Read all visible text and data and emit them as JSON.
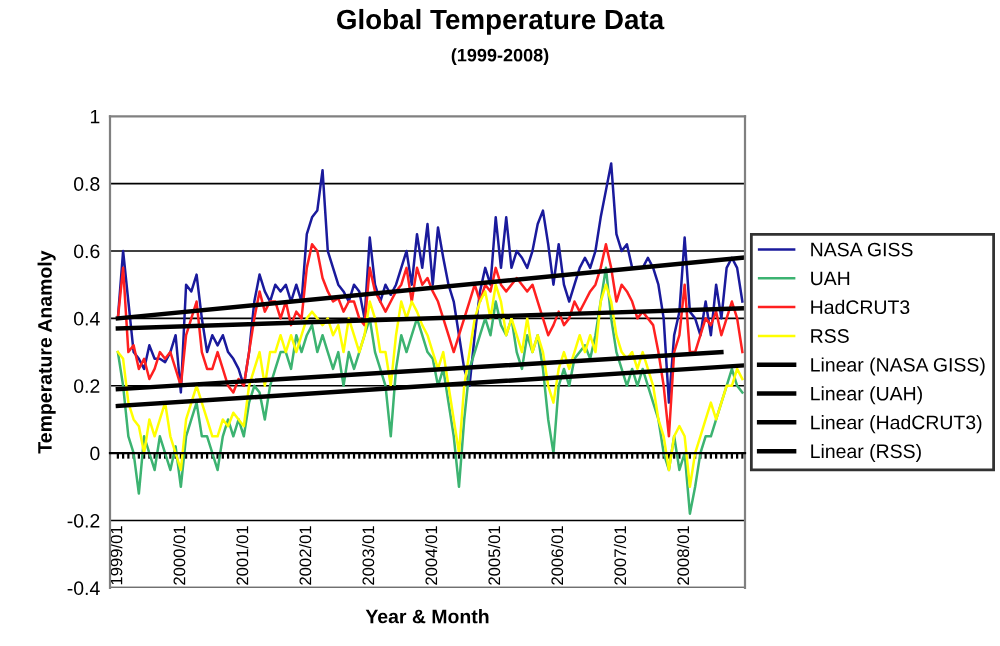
{
  "chart_data": {
    "type": "line",
    "title": "Global Temperature Data",
    "subtitle": "(1999-2008)",
    "xlabel": "Year & Month",
    "ylabel": "Temperature Anamoly",
    "categories": [
      "1999/01",
      null,
      null,
      null,
      null,
      null,
      null,
      null,
      null,
      null,
      null,
      null,
      "2000/01",
      null,
      null,
      null,
      null,
      null,
      null,
      null,
      null,
      null,
      null,
      null,
      "2001/01",
      null,
      null,
      null,
      null,
      null,
      null,
      null,
      null,
      null,
      null,
      null,
      "2002/01",
      null,
      null,
      null,
      null,
      null,
      null,
      null,
      null,
      null,
      null,
      null,
      "2003/01",
      null,
      null,
      null,
      null,
      null,
      null,
      null,
      null,
      null,
      null,
      null,
      "2004/01",
      null,
      null,
      null,
      null,
      null,
      null,
      null,
      null,
      null,
      null,
      null,
      "2005/01",
      null,
      null,
      null,
      null,
      null,
      null,
      null,
      null,
      null,
      null,
      null,
      "2006/01",
      null,
      null,
      null,
      null,
      null,
      null,
      null,
      null,
      null,
      null,
      null,
      "2007/01",
      null,
      null,
      null,
      null,
      null,
      null,
      null,
      null,
      null,
      null,
      null,
      "2008/01",
      null,
      null,
      null,
      null,
      null,
      null,
      null,
      null,
      null,
      null,
      null
    ],
    "series": [
      {
        "name": "NASA GISS",
        "color": "#1a1a9c",
        "values": [
          0.4,
          0.6,
          0.45,
          0.3,
          0.28,
          0.25,
          0.32,
          0.28,
          0.28,
          0.27,
          0.3,
          0.35,
          0.18,
          0.5,
          0.48,
          0.53,
          0.4,
          0.3,
          0.35,
          0.32,
          0.35,
          0.3,
          0.28,
          0.25,
          0.2,
          0.3,
          0.45,
          0.53,
          0.48,
          0.45,
          0.5,
          0.48,
          0.5,
          0.45,
          0.5,
          0.45,
          0.65,
          0.7,
          0.72,
          0.84,
          0.6,
          0.55,
          0.5,
          0.48,
          0.45,
          0.5,
          0.48,
          0.4,
          0.64,
          0.5,
          0.45,
          0.5,
          0.47,
          0.5,
          0.55,
          0.6,
          0.5,
          0.65,
          0.55,
          0.68,
          0.5,
          0.67,
          0.58,
          0.5,
          0.45,
          0.35,
          0.25,
          0.2,
          0.35,
          0.48,
          0.55,
          0.5,
          0.7,
          0.55,
          0.7,
          0.55,
          0.6,
          0.58,
          0.55,
          0.6,
          0.68,
          0.72,
          0.62,
          0.5,
          0.62,
          0.5,
          0.45,
          0.5,
          0.55,
          0.58,
          0.55,
          0.6,
          0.7,
          0.78,
          0.86,
          0.65,
          0.6,
          0.62,
          0.55,
          0.55,
          0.55,
          0.58,
          0.55,
          0.5,
          0.4,
          0.15,
          0.35,
          0.42,
          0.64,
          0.42,
          0.4,
          0.35,
          0.45,
          0.35,
          0.5,
          0.4,
          0.55,
          0.58,
          0.55,
          0.45
        ]
      },
      {
        "name": "UAH",
        "color": "#3cb371",
        "values": [
          0.3,
          0.2,
          0.05,
          0.0,
          -0.12,
          0.05,
          0.0,
          -0.05,
          0.05,
          0.0,
          -0.05,
          0.02,
          -0.1,
          0.05,
          0.1,
          0.15,
          0.05,
          0.05,
          0.0,
          -0.05,
          0.05,
          0.1,
          0.05,
          0.1,
          0.05,
          0.15,
          0.2,
          0.18,
          0.1,
          0.2,
          0.25,
          0.3,
          0.3,
          0.25,
          0.35,
          0.3,
          0.35,
          0.38,
          0.3,
          0.35,
          0.3,
          0.25,
          0.3,
          0.2,
          0.3,
          0.25,
          0.3,
          0.35,
          0.4,
          0.3,
          0.25,
          0.2,
          0.05,
          0.25,
          0.35,
          0.3,
          0.35,
          0.4,
          0.35,
          0.3,
          0.28,
          0.2,
          0.25,
          0.15,
          0.05,
          -0.1,
          0.1,
          0.25,
          0.3,
          0.35,
          0.4,
          0.35,
          0.45,
          0.38,
          0.35,
          0.4,
          0.3,
          0.25,
          0.35,
          0.3,
          0.35,
          0.25,
          0.1,
          0.0,
          0.2,
          0.25,
          0.2,
          0.28,
          0.3,
          0.32,
          0.28,
          0.35,
          0.45,
          0.55,
          0.4,
          0.3,
          0.25,
          0.2,
          0.25,
          0.2,
          0.25,
          0.2,
          0.15,
          0.1,
          0.0,
          -0.05,
          0.05,
          -0.05,
          0.0,
          -0.18,
          -0.1,
          0.0,
          0.05,
          0.05,
          0.1,
          0.15,
          0.2,
          0.25,
          0.2,
          0.18
        ]
      },
      {
        "name": "HadCRUT3",
        "color": "#ff2020",
        "values": [
          0.4,
          0.55,
          0.3,
          0.32,
          0.25,
          0.28,
          0.22,
          0.25,
          0.3,
          0.28,
          0.3,
          0.25,
          0.2,
          0.35,
          0.4,
          0.45,
          0.3,
          0.25,
          0.25,
          0.3,
          0.25,
          0.2,
          0.18,
          0.22,
          0.2,
          0.3,
          0.4,
          0.48,
          0.42,
          0.45,
          0.45,
          0.4,
          0.45,
          0.38,
          0.42,
          0.4,
          0.55,
          0.62,
          0.6,
          0.52,
          0.48,
          0.45,
          0.46,
          0.42,
          0.45,
          0.45,
          0.4,
          0.38,
          0.55,
          0.48,
          0.45,
          0.42,
          0.45,
          0.48,
          0.5,
          0.55,
          0.45,
          0.55,
          0.5,
          0.52,
          0.48,
          0.45,
          0.4,
          0.35,
          0.3,
          0.35,
          0.4,
          0.45,
          0.5,
          0.45,
          0.5,
          0.48,
          0.55,
          0.5,
          0.48,
          0.5,
          0.52,
          0.5,
          0.48,
          0.5,
          0.45,
          0.4,
          0.35,
          0.38,
          0.42,
          0.38,
          0.4,
          0.45,
          0.42,
          0.45,
          0.48,
          0.5,
          0.55,
          0.62,
          0.55,
          0.45,
          0.5,
          0.48,
          0.45,
          0.4,
          0.42,
          0.4,
          0.38,
          0.3,
          0.2,
          0.05,
          0.3,
          0.35,
          0.5,
          0.3,
          0.3,
          0.35,
          0.4,
          0.38,
          0.42,
          0.35,
          0.4,
          0.45,
          0.4,
          0.3
        ]
      },
      {
        "name": "RSS",
        "color": "#ffff00",
        "values": [
          0.3,
          0.28,
          0.15,
          0.1,
          0.08,
          0.0,
          0.1,
          0.05,
          0.1,
          0.15,
          0.05,
          0.0,
          -0.05,
          0.1,
          0.15,
          0.2,
          0.15,
          0.1,
          0.05,
          0.05,
          0.1,
          0.08,
          0.12,
          0.1,
          0.08,
          0.2,
          0.25,
          0.3,
          0.2,
          0.3,
          0.3,
          0.35,
          0.3,
          0.35,
          0.3,
          0.35,
          0.4,
          0.42,
          0.4,
          0.38,
          0.4,
          0.35,
          0.38,
          0.3,
          0.4,
          0.35,
          0.3,
          0.35,
          0.45,
          0.4,
          0.3,
          0.3,
          0.2,
          0.35,
          0.45,
          0.4,
          0.45,
          0.42,
          0.38,
          0.35,
          0.3,
          0.25,
          0.3,
          0.2,
          0.1,
          0.0,
          0.2,
          0.3,
          0.4,
          0.45,
          0.48,
          0.4,
          0.5,
          0.45,
          0.35,
          0.4,
          0.35,
          0.3,
          0.4,
          0.3,
          0.35,
          0.3,
          0.2,
          0.15,
          0.25,
          0.3,
          0.25,
          0.3,
          0.35,
          0.3,
          0.35,
          0.3,
          0.45,
          0.5,
          0.45,
          0.35,
          0.3,
          0.28,
          0.3,
          0.25,
          0.3,
          0.25,
          0.2,
          0.1,
          0.05,
          -0.05,
          0.05,
          0.08,
          0.05,
          -0.1,
          0.0,
          0.05,
          0.1,
          0.15,
          0.1,
          0.15,
          0.2,
          0.2,
          0.25,
          0.22
        ]
      },
      {
        "name": "Linear (NASA GISS)",
        "color": "#000000",
        "values": [
          0.4,
          null,
          null,
          null,
          null,
          null,
          null,
          null,
          null,
          null,
          null,
          null,
          null,
          null,
          null,
          null,
          null,
          null,
          null,
          null,
          null,
          null,
          null,
          null,
          null,
          null,
          null,
          null,
          null,
          null,
          null,
          null,
          null,
          null,
          null,
          null,
          null,
          null,
          null,
          null,
          null,
          null,
          null,
          null,
          null,
          null,
          null,
          null,
          null,
          null,
          null,
          null,
          null,
          null,
          null,
          null,
          null,
          null,
          null,
          null,
          null,
          null,
          null,
          null,
          null,
          null,
          null,
          null,
          null,
          null,
          null,
          null,
          null,
          null,
          null,
          null,
          null,
          null,
          null,
          null,
          null,
          null,
          null,
          null,
          null,
          null,
          null,
          null,
          null,
          null,
          null,
          null,
          null,
          null,
          null,
          null,
          null,
          null,
          null,
          null,
          null,
          null,
          null,
          null,
          null,
          null,
          null,
          null,
          null,
          null,
          null,
          null,
          null,
          null,
          null,
          null,
          null,
          null,
          null,
          0.58
        ]
      },
      {
        "name": "Linear (UAH)",
        "color": "#000000",
        "values": [
          0.14,
          null,
          null,
          null,
          null,
          null,
          null,
          null,
          null,
          null,
          null,
          null,
          null,
          null,
          null,
          null,
          null,
          null,
          null,
          null,
          null,
          null,
          null,
          null,
          null,
          null,
          null,
          null,
          null,
          null,
          null,
          null,
          null,
          null,
          null,
          null,
          null,
          null,
          null,
          null,
          null,
          null,
          null,
          null,
          null,
          null,
          null,
          null,
          null,
          null,
          null,
          null,
          null,
          null,
          null,
          null,
          null,
          null,
          null,
          null,
          null,
          null,
          null,
          null,
          null,
          null,
          null,
          null,
          null,
          null,
          null,
          null,
          null,
          null,
          null,
          null,
          null,
          null,
          null,
          null,
          null,
          null,
          null,
          null,
          null,
          null,
          null,
          null,
          null,
          null,
          null,
          null,
          null,
          null,
          null,
          null,
          null,
          null,
          null,
          null,
          null,
          null,
          null,
          null,
          null,
          null,
          null,
          null,
          null,
          null,
          null,
          null,
          null,
          null,
          null,
          null,
          null,
          null,
          null,
          0.26
        ]
      },
      {
        "name": "Linear (HadCRUT3)",
        "color": "#000000",
        "values": [
          0.37,
          null,
          null,
          null,
          null,
          null,
          null,
          null,
          null,
          null,
          null,
          null,
          null,
          null,
          null,
          null,
          null,
          null,
          null,
          null,
          null,
          null,
          null,
          null,
          null,
          null,
          null,
          null,
          null,
          null,
          null,
          null,
          null,
          null,
          null,
          null,
          null,
          null,
          null,
          null,
          null,
          null,
          null,
          null,
          null,
          null,
          null,
          null,
          null,
          null,
          null,
          null,
          null,
          null,
          null,
          null,
          null,
          null,
          null,
          null,
          null,
          null,
          null,
          null,
          null,
          null,
          null,
          null,
          null,
          null,
          null,
          null,
          null,
          null,
          null,
          null,
          null,
          null,
          null,
          null,
          null,
          null,
          null,
          null,
          null,
          null,
          null,
          null,
          null,
          null,
          null,
          null,
          null,
          null,
          null,
          null,
          null,
          null,
          null,
          null,
          null,
          null,
          null,
          null,
          null,
          null,
          null,
          null,
          null,
          null,
          null,
          null,
          null,
          null,
          null,
          null,
          null,
          null,
          null,
          0.43
        ]
      },
      {
        "name": "Linear (RSS)",
        "color": "#000000",
        "values": [
          0.19,
          null,
          null,
          null,
          null,
          null,
          null,
          null,
          null,
          null,
          null,
          null,
          null,
          null,
          null,
          null,
          null,
          null,
          null,
          null,
          null,
          null,
          null,
          null,
          null,
          null,
          null,
          null,
          null,
          null,
          null,
          null,
          null,
          null,
          null,
          null,
          null,
          null,
          null,
          null,
          null,
          null,
          null,
          null,
          null,
          null,
          null,
          null,
          null,
          null,
          null,
          null,
          null,
          null,
          null,
          null,
          null,
          null,
          null,
          null,
          null,
          null,
          null,
          null,
          null,
          null,
          null,
          null,
          null,
          null,
          null,
          null,
          null,
          null,
          null,
          null,
          null,
          null,
          null,
          null,
          null,
          null,
          null,
          null,
          null,
          null,
          null,
          null,
          null,
          null,
          null,
          null,
          null,
          null,
          null,
          null,
          null,
          null,
          null,
          null,
          null,
          null,
          null,
          null,
          null,
          null,
          null,
          null,
          null,
          null,
          null,
          null,
          null,
          null,
          null,
          0.3,
          null,
          null,
          null,
          null
        ]
      }
    ],
    "ylim": [
      -0.4,
      1
    ],
    "yticks": [
      -0.4,
      -0.2,
      0,
      0.2,
      0.4,
      0.6,
      0.8,
      1
    ],
    "grid": "y",
    "legend": "right"
  }
}
